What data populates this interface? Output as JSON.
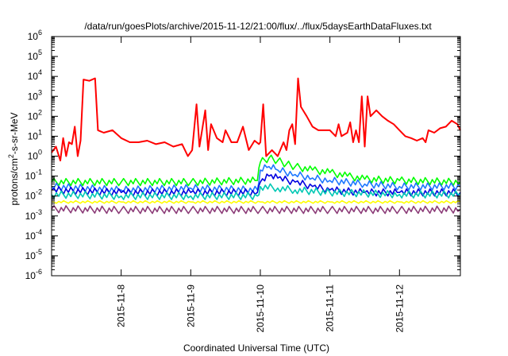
{
  "chart_data": {
    "type": "line",
    "title": "/data/run/goesPlots/archive/2015-11-12/21:00/flux/../flux/5daysEarthDataFluxes.txt",
    "xlabel": "Coordinated Universal Time (UTC)",
    "ylabel": {
      "base": "protons/cm",
      "sup": "2",
      "rest": "-s-sr-MeV"
    },
    "y_scale": "log",
    "ylim": [
      1e-06,
      1000000.0
    ],
    "xlim": [
      "2015-11-07 00:00",
      "2015-11-12 21:00"
    ],
    "grid": false,
    "legend": "none",
    "y_ticks": [
      {
        "value": 1e-06,
        "base": "10",
        "exp": "-6"
      },
      {
        "value": 1e-05,
        "base": "10",
        "exp": "-5"
      },
      {
        "value": 0.0001,
        "base": "10",
        "exp": "-4"
      },
      {
        "value": 0.001,
        "base": "10",
        "exp": "-3"
      },
      {
        "value": 0.01,
        "base": "10",
        "exp": "-2"
      },
      {
        "value": 0.1,
        "base": "10",
        "exp": "-1"
      },
      {
        "value": 1,
        "base": "10",
        "exp": "0"
      },
      {
        "value": 10,
        "base": "10",
        "exp": "1"
      },
      {
        "value": 100,
        "base": "10",
        "exp": "2"
      },
      {
        "value": 1000,
        "base": "10",
        "exp": "3"
      },
      {
        "value": 10000,
        "base": "10",
        "exp": "4"
      },
      {
        "value": 100000,
        "base": "10",
        "exp": "5"
      },
      {
        "value": 1000000,
        "base": "10",
        "exp": "6"
      }
    ],
    "x_ticks": [
      {
        "x": "2015-11-08 00:00",
        "label": "2015-11-8"
      },
      {
        "x": "2015-11-09 00:00",
        "label": "2015-11-9"
      },
      {
        "x": "2015-11-10 00:00",
        "label": "2015-11-10"
      },
      {
        "x": "2015-11-11 00:00",
        "label": "2015-11-11"
      },
      {
        "x": "2015-11-12 00:00",
        "label": "2015-11-12"
      }
    ],
    "series": [
      {
        "color": "#ff0000",
        "points": [
          [
            "2015-11-07 00:00",
            1.5
          ],
          [
            "2015-11-07 01:30",
            3
          ],
          [
            "2015-11-07 03:00",
            0.6
          ],
          [
            "2015-11-07 04:00",
            8
          ],
          [
            "2015-11-07 05:00",
            1
          ],
          [
            "2015-11-07 06:00",
            5
          ],
          [
            "2015-11-07 07:00",
            4
          ],
          [
            "2015-11-07 08:00",
            30
          ],
          [
            "2015-11-07 09:00",
            1
          ],
          [
            "2015-11-07 10:00",
            6
          ],
          [
            "2015-11-07 11:00",
            7000
          ],
          [
            "2015-11-07 13:00",
            6000
          ],
          [
            "2015-11-07 15:00",
            8000
          ],
          [
            "2015-11-07 16:00",
            20
          ],
          [
            "2015-11-07 18:00",
            15
          ],
          [
            "2015-11-07 21:00",
            20
          ],
          [
            "2015-11-08 00:00",
            8
          ],
          [
            "2015-11-08 03:00",
            5
          ],
          [
            "2015-11-08 06:00",
            5
          ],
          [
            "2015-11-08 09:00",
            6
          ],
          [
            "2015-11-08 12:00",
            4
          ],
          [
            "2015-11-08 15:00",
            5
          ],
          [
            "2015-11-08 18:00",
            3
          ],
          [
            "2015-11-08 21:00",
            4
          ],
          [
            "2015-11-08 23:00",
            1
          ],
          [
            "2015-11-09 00:30",
            2
          ],
          [
            "2015-11-09 02:00",
            400
          ],
          [
            "2015-11-09 03:00",
            3
          ],
          [
            "2015-11-09 05:00",
            200
          ],
          [
            "2015-11-09 06:00",
            2
          ],
          [
            "2015-11-09 07:00",
            40
          ],
          [
            "2015-11-09 09:00",
            8
          ],
          [
            "2015-11-09 11:00",
            5
          ],
          [
            "2015-11-09 12:00",
            20
          ],
          [
            "2015-11-09 14:00",
            5
          ],
          [
            "2015-11-09 16:00",
            5
          ],
          [
            "2015-11-09 18:00",
            30
          ],
          [
            "2015-11-09 20:00",
            2
          ],
          [
            "2015-11-09 22:00",
            6
          ],
          [
            "2015-11-09 23:30",
            4
          ],
          [
            "2015-11-10 00:00",
            5
          ],
          [
            "2015-11-10 01:00",
            400
          ],
          [
            "2015-11-10 02:00",
            1
          ],
          [
            "2015-11-10 04:00",
            2
          ],
          [
            "2015-11-10 06:00",
            1
          ],
          [
            "2015-11-10 08:00",
            5
          ],
          [
            "2015-11-10 09:00",
            2
          ],
          [
            "2015-11-10 10:00",
            20
          ],
          [
            "2015-11-10 11:00",
            40
          ],
          [
            "2015-11-10 12:00",
            4
          ],
          [
            "2015-11-10 13:00",
            8000
          ],
          [
            "2015-11-10 14:00",
            300
          ],
          [
            "2015-11-10 16:00",
            100
          ],
          [
            "2015-11-10 18:00",
            30
          ],
          [
            "2015-11-10 20:00",
            20
          ],
          [
            "2015-11-10 22:00",
            20
          ],
          [
            "2015-11-11 00:00",
            20
          ],
          [
            "2015-11-11 02:00",
            10
          ],
          [
            "2015-11-11 03:00",
            40
          ],
          [
            "2015-11-11 04:00",
            10
          ],
          [
            "2015-11-11 06:00",
            15
          ],
          [
            "2015-11-11 07:00",
            50
          ],
          [
            "2015-11-11 08:00",
            5
          ],
          [
            "2015-11-11 09:00",
            20
          ],
          [
            "2015-11-11 10:00",
            5
          ],
          [
            "2015-11-11 11:00",
            1000
          ],
          [
            "2015-11-11 12:00",
            3
          ],
          [
            "2015-11-11 13:00",
            1000
          ],
          [
            "2015-11-11 14:00",
            100
          ],
          [
            "2015-11-11 16:00",
            200
          ],
          [
            "2015-11-11 18:00",
            100
          ],
          [
            "2015-11-11 20:00",
            60
          ],
          [
            "2015-11-11 22:00",
            40
          ],
          [
            "2015-11-12 00:00",
            20
          ],
          [
            "2015-11-12 02:00",
            10
          ],
          [
            "2015-11-12 04:00",
            8
          ],
          [
            "2015-11-12 06:00",
            6
          ],
          [
            "2015-11-12 08:00",
            8
          ],
          [
            "2015-11-12 09:00",
            5
          ],
          [
            "2015-11-12 10:00",
            20
          ],
          [
            "2015-11-12 12:00",
            15
          ],
          [
            "2015-11-12 14:00",
            25
          ],
          [
            "2015-11-12 16:00",
            30
          ],
          [
            "2015-11-12 18:00",
            60
          ],
          [
            "2015-11-12 20:00",
            40
          ],
          [
            "2015-11-12 21:00",
            20
          ]
        ]
      },
      {
        "color": "#00ff00",
        "points": [
          [
            "2015-11-07 00:00",
            0.05
          ],
          [
            "2015-11-08 00:00",
            0.05
          ],
          [
            "2015-11-09 00:00",
            0.05
          ],
          [
            "2015-11-09 23:00",
            0.06
          ],
          [
            "2015-11-10 00:00",
            0.5
          ],
          [
            "2015-11-10 03:00",
            0.8
          ],
          [
            "2015-11-10 06:00",
            0.6
          ],
          [
            "2015-11-10 09:00",
            0.4
          ],
          [
            "2015-11-10 12:00",
            0.3
          ],
          [
            "2015-11-10 18:00",
            0.2
          ],
          [
            "2015-11-11 00:00",
            0.15
          ],
          [
            "2015-11-11 06:00",
            0.1
          ],
          [
            "2015-11-11 12:00",
            0.07
          ],
          [
            "2015-11-12 00:00",
            0.06
          ],
          [
            "2015-11-12 21:00",
            0.05
          ]
        ]
      },
      {
        "color": "#1e78ff",
        "points": [
          [
            "2015-11-07 00:00",
            0.03
          ],
          [
            "2015-11-08 00:00",
            0.02
          ],
          [
            "2015-11-09 00:00",
            0.025
          ],
          [
            "2015-11-09 23:00",
            0.02
          ],
          [
            "2015-11-10 00:00",
            0.2
          ],
          [
            "2015-11-10 03:00",
            0.3
          ],
          [
            "2015-11-10 06:00",
            0.2
          ],
          [
            "2015-11-10 12:00",
            0.12
          ],
          [
            "2015-11-10 18:00",
            0.08
          ],
          [
            "2015-11-11 00:00",
            0.06
          ],
          [
            "2015-11-11 12:00",
            0.04
          ],
          [
            "2015-11-12 00:00",
            0.03
          ],
          [
            "2015-11-12 21:00",
            0.03
          ]
        ]
      },
      {
        "color": "#0000e0",
        "points": [
          [
            "2015-11-07 00:00",
            0.02
          ],
          [
            "2015-11-08 00:00",
            0.015
          ],
          [
            "2015-11-09 00:00",
            0.015
          ],
          [
            "2015-11-09 23:00",
            0.015
          ],
          [
            "2015-11-10 00:00",
            0.05
          ],
          [
            "2015-11-10 03:00",
            0.1
          ],
          [
            "2015-11-10 06:00",
            0.08
          ],
          [
            "2015-11-10 12:00",
            0.05
          ],
          [
            "2015-11-10 18:00",
            0.03
          ],
          [
            "2015-11-11 00:00",
            0.02
          ],
          [
            "2015-11-11 12:00",
            0.015
          ],
          [
            "2015-11-12 00:00",
            0.015
          ],
          [
            "2015-11-12 21:00",
            0.015
          ]
        ]
      },
      {
        "color": "#00c8b4",
        "points": [
          [
            "2015-11-07 00:00",
            0.012
          ],
          [
            "2015-11-08 00:00",
            0.01
          ],
          [
            "2015-11-09 00:00",
            0.01
          ],
          [
            "2015-11-09 23:00",
            0.01
          ],
          [
            "2015-11-10 00:00",
            0.03
          ],
          [
            "2015-11-10 06:00",
            0.025
          ],
          [
            "2015-11-10 12:00",
            0.02
          ],
          [
            "2015-11-11 00:00",
            0.015
          ],
          [
            "2015-11-12 00:00",
            0.012
          ],
          [
            "2015-11-12 21:00",
            0.012
          ]
        ]
      },
      {
        "color": "#ffff00",
        "points": [
          [
            "2015-11-07 00:00",
            0.005
          ],
          [
            "2015-11-08 00:00",
            0.005
          ],
          [
            "2015-11-09 00:00",
            0.005
          ],
          [
            "2015-11-10 00:00",
            0.005
          ],
          [
            "2015-11-11 00:00",
            0.005
          ],
          [
            "2015-11-12 00:00",
            0.005
          ],
          [
            "2015-11-12 21:00",
            0.005
          ]
        ]
      },
      {
        "color": "#8c3c78",
        "points": [
          [
            "2015-11-07 00:00",
            0.0022
          ],
          [
            "2015-11-08 00:00",
            0.002
          ],
          [
            "2015-11-09 00:00",
            0.002
          ],
          [
            "2015-11-10 00:00",
            0.002
          ],
          [
            "2015-11-11 00:00",
            0.002
          ],
          [
            "2015-11-12 00:00",
            0.002
          ],
          [
            "2015-11-12 21:00",
            0.0021
          ]
        ]
      }
    ]
  }
}
